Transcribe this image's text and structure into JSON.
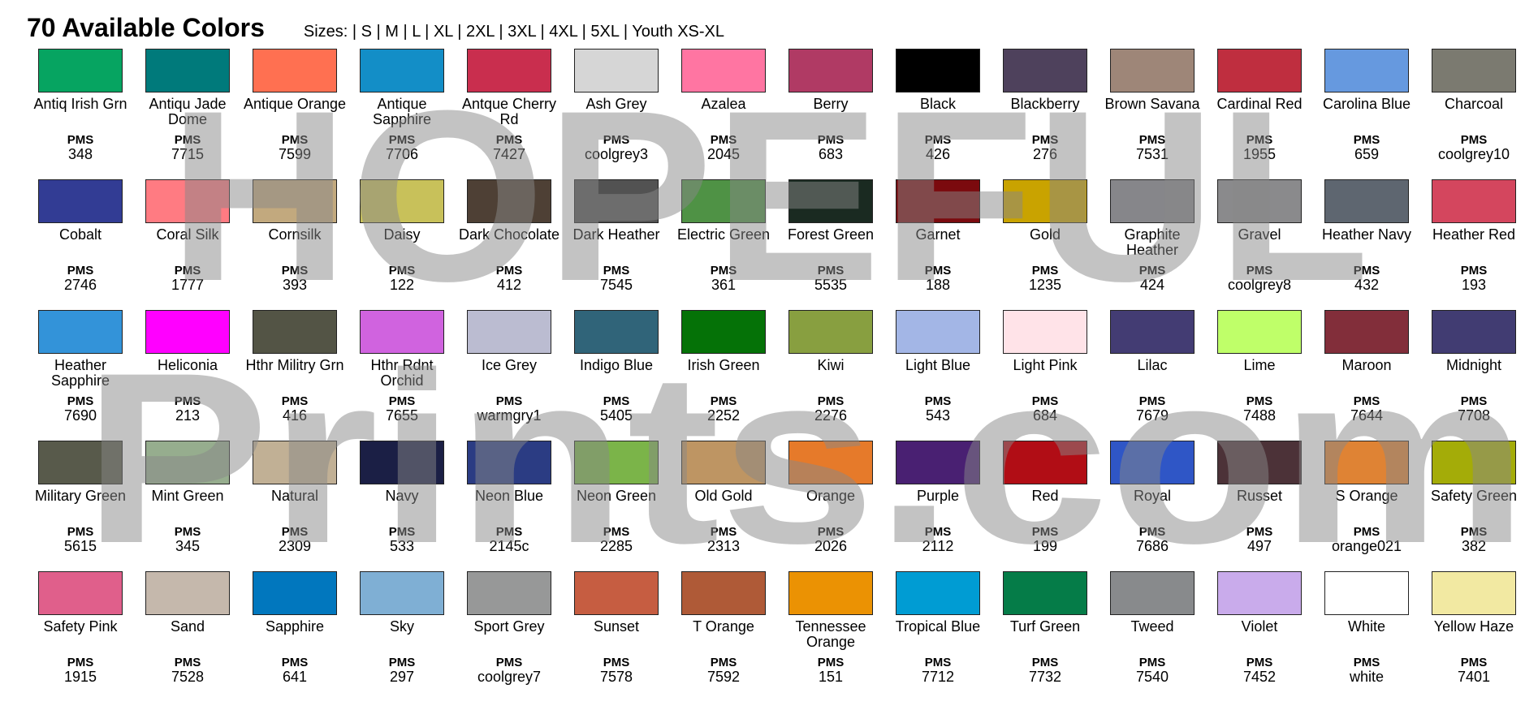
{
  "header": {
    "title": "70 Available Colors",
    "sizes": "Sizes: | S | M | L | XL | 2XL | 3XL | 4XL | 5XL | Youth XS-XL"
  },
  "pms_label": "PMS",
  "watermark": {
    "line1": "HOPEFUL",
    "line2": "Prints.com"
  },
  "colors": [
    {
      "name": "Antiq Irish Grn",
      "pms": "348",
      "hex": "#06A461"
    },
    {
      "name": "Antiqu Jade Dome",
      "pms": "7715",
      "hex": "#007A7B"
    },
    {
      "name": "Antique Orange",
      "pms": "7599",
      "hex": "#FF7051"
    },
    {
      "name": "Antique Sapphire",
      "pms": "7706",
      "hex": "#138EC7"
    },
    {
      "name": "Antque Cherry Rd",
      "pms": "7427",
      "hex": "#C92E4E"
    },
    {
      "name": "Ash Grey",
      "pms": "coolgrey3",
      "hex": "#D6D6D6"
    },
    {
      "name": "Azalea",
      "pms": "2045",
      "hex": "#FF75A2"
    },
    {
      "name": "Berry",
      "pms": "683",
      "hex": "#B03A64"
    },
    {
      "name": "Black",
      "pms": "426",
      "hex": "#000000"
    },
    {
      "name": "Blackberry",
      "pms": "276",
      "hex": "#4E415C"
    },
    {
      "name": "Brown Savana",
      "pms": "7531",
      "hex": "#9E8678"
    },
    {
      "name": "Cardinal Red",
      "pms": "1955",
      "hex": "#BF2E3F"
    },
    {
      "name": "Carolina Blue",
      "pms": "659",
      "hex": "#6699DF"
    },
    {
      "name": "Charcoal",
      "pms": "coolgrey10",
      "hex": "#7B7A70"
    },
    {
      "name": "Cobalt",
      "pms": "2746",
      "hex": "#323C94"
    },
    {
      "name": "Coral Silk",
      "pms": "1777",
      "hex": "#FF7B82"
    },
    {
      "name": "Cornsilk",
      "pms": "393",
      "hex": "#C2A97E"
    },
    {
      "name": "Daisy",
      "pms": "122",
      "hex": "#C8C15A"
    },
    {
      "name": "Dark Chocolate",
      "pms": "412",
      "hex": "#4E4035"
    },
    {
      "name": "Dark Heather",
      "pms": "7545",
      "hex": "#525252"
    },
    {
      "name": "Electric Green",
      "pms": "361",
      "hex": "#4F9245"
    },
    {
      "name": "Forest Green",
      "pms": "5535",
      "hex": "#1A2A21"
    },
    {
      "name": "Garnet",
      "pms": "188",
      "hex": "#7B0A0E"
    },
    {
      "name": "Gold",
      "pms": "1235",
      "hex": "#C9A300"
    },
    {
      "name": "Graphite Heather",
      "pms": "424",
      "hex": "#86868A"
    },
    {
      "name": "Gravel",
      "pms": "coolgrey8",
      "hex": "#8A8A8C"
    },
    {
      "name": "Heather Navy",
      "pms": "432",
      "hex": "#5E6670"
    },
    {
      "name": "Heather Red",
      "pms": "193",
      "hex": "#D4465E"
    },
    {
      "name": "Heather Sapphire",
      "pms": "7690",
      "hex": "#3393D9"
    },
    {
      "name": "Heliconia",
      "pms": "213",
      "hex": "#FF00FF"
    },
    {
      "name": "Hthr Militry Grn",
      "pms": "416",
      "hex": "#535445"
    },
    {
      "name": "Hthr Rdnt Orchid",
      "pms": "7655",
      "hex": "#D063DF"
    },
    {
      "name": "Ice Grey",
      "pms": "warmgry1",
      "hex": "#BBBCD1"
    },
    {
      "name": "Indigo Blue",
      "pms": "5405",
      "hex": "#306479"
    },
    {
      "name": "Irish Green",
      "pms": "2252",
      "hex": "#057207"
    },
    {
      "name": "Kiwi",
      "pms": "2276",
      "hex": "#889F40"
    },
    {
      "name": "Light Blue",
      "pms": "543",
      "hex": "#A3B6E6"
    },
    {
      "name": "Light Pink",
      "pms": "684",
      "hex": "#FFE3E8"
    },
    {
      "name": "Lilac",
      "pms": "7679",
      "hex": "#433C73"
    },
    {
      "name": "Lime",
      "pms": "7488",
      "hex": "#BFFF69"
    },
    {
      "name": "Maroon",
      "pms": "7644",
      "hex": "#822E3A"
    },
    {
      "name": "Midnight",
      "pms": "7708",
      "hex": "#413C72"
    },
    {
      "name": "Military Green",
      "pms": "5615",
      "hex": "#585A4B"
    },
    {
      "name": "Mint Green",
      "pms": "345",
      "hex": "#96AD8E"
    },
    {
      "name": "Natural",
      "pms": "2309",
      "hex": "#C1B095"
    },
    {
      "name": "Navy",
      "pms": "533",
      "hex": "#1B1F45"
    },
    {
      "name": "Neon Blue",
      "pms": "2145c",
      "hex": "#2B3C83"
    },
    {
      "name": "Neon Green",
      "pms": "2285",
      "hex": "#7BB449"
    },
    {
      "name": "Old Gold",
      "pms": "2313",
      "hex": "#BE9563"
    },
    {
      "name": "Orange",
      "pms": "2026",
      "hex": "#E67A2A"
    },
    {
      "name": "Purple",
      "pms": "2112",
      "hex": "#492072"
    },
    {
      "name": "Red",
      "pms": "199",
      "hex": "#B10D15"
    },
    {
      "name": "Royal",
      "pms": "7686",
      "hex": "#2F56C6"
    },
    {
      "name": "Russet",
      "pms": "497",
      "hex": "#4C3238"
    },
    {
      "name": "S Orange",
      "pms": "orange021",
      "hex": "#DF8334"
    },
    {
      "name": "Safety Green",
      "pms": "382",
      "hex": "#A4AC08"
    },
    {
      "name": "Safety Pink",
      "pms": "1915",
      "hex": "#E05F8B"
    },
    {
      "name": "Sand",
      "pms": "7528",
      "hex": "#C5B8AC"
    },
    {
      "name": "Sapphire",
      "pms": "641",
      "hex": "#0177BE"
    },
    {
      "name": "Sky",
      "pms": "297",
      "hex": "#7FAFD4"
    },
    {
      "name": "Sport Grey",
      "pms": "coolgrey7",
      "hex": "#979898"
    },
    {
      "name": "Sunset",
      "pms": "7578",
      "hex": "#C65D41"
    },
    {
      "name": "T Orange",
      "pms": "7592",
      "hex": "#AF5A37"
    },
    {
      "name": "Tennessee Orange",
      "pms": "151",
      "hex": "#EB9203"
    },
    {
      "name": "Tropical Blue",
      "pms": "7712",
      "hex": "#009CD3"
    },
    {
      "name": "Turf Green",
      "pms": "7732",
      "hex": "#057C48"
    },
    {
      "name": "Tweed",
      "pms": "7540",
      "hex": "#888A8C"
    },
    {
      "name": "Violet",
      "pms": "7452",
      "hex": "#C9ABEB"
    },
    {
      "name": "White",
      "pms": "white",
      "hex": "#FFFFFF"
    },
    {
      "name": "Yellow Haze",
      "pms": "7401",
      "hex": "#F2E9A2"
    }
  ]
}
